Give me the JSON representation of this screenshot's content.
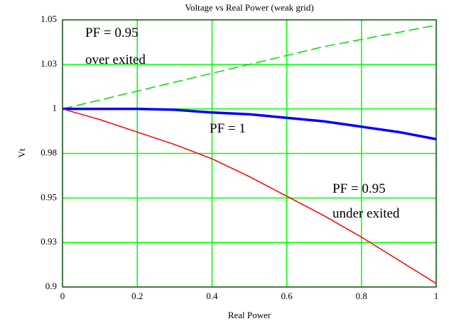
{
  "chart_data": {
    "type": "line",
    "title": "Voltage vs Real Power (weak grid)",
    "x_label": "Real Power",
    "y_label": "Vt",
    "x": [
      0,
      0.1,
      0.2,
      0.3,
      0.4,
      0.5,
      0.6,
      0.7,
      0.8,
      0.9,
      1
    ],
    "series": [
      {
        "name": "PF = 0.95 over exited",
        "color": "#00dd00",
        "dash": true,
        "values": [
          1,
          1.005,
          1.01,
          1.015,
          1.02,
          1.025,
          1.03,
          1.035,
          1.039,
          1.043,
          1.047
        ]
      },
      {
        "name": "PF = 1",
        "color": "#0000ff",
        "dash": false,
        "values": [
          1,
          1.0,
          1.0,
          0.9995,
          0.998,
          0.997,
          0.995,
          0.993,
          0.99,
          0.987,
          0.983
        ]
      },
      {
        "name": "PF = 0.95 under exited",
        "color": "#ff0000",
        "dash": false,
        "values": [
          1,
          0.994,
          0.987,
          0.98,
          0.972,
          0.962,
          0.951,
          0.94,
          0.928,
          0.915,
          0.902
        ]
      }
    ],
    "annotations": [
      "PF = 0.95",
      "over exited",
      "PF = 1",
      "PF = 0.95",
      "under exited"
    ],
    "xlim": [
      0,
      1
    ],
    "xticks": [
      0,
      0.2,
      0.4,
      0.6,
      0.8,
      1
    ],
    "ylim": [
      0.9,
      1.05
    ],
    "yticks": [
      0.9,
      {
        "value": 0.925,
        "label": "0.93"
      },
      0.95,
      {
        "value": 0.975,
        "label": "0.98"
      },
      1,
      {
        "value": 1.025,
        "label": "1.03"
      },
      1.05
    ],
    "grid": true,
    "grid_color": "#00ff00"
  }
}
